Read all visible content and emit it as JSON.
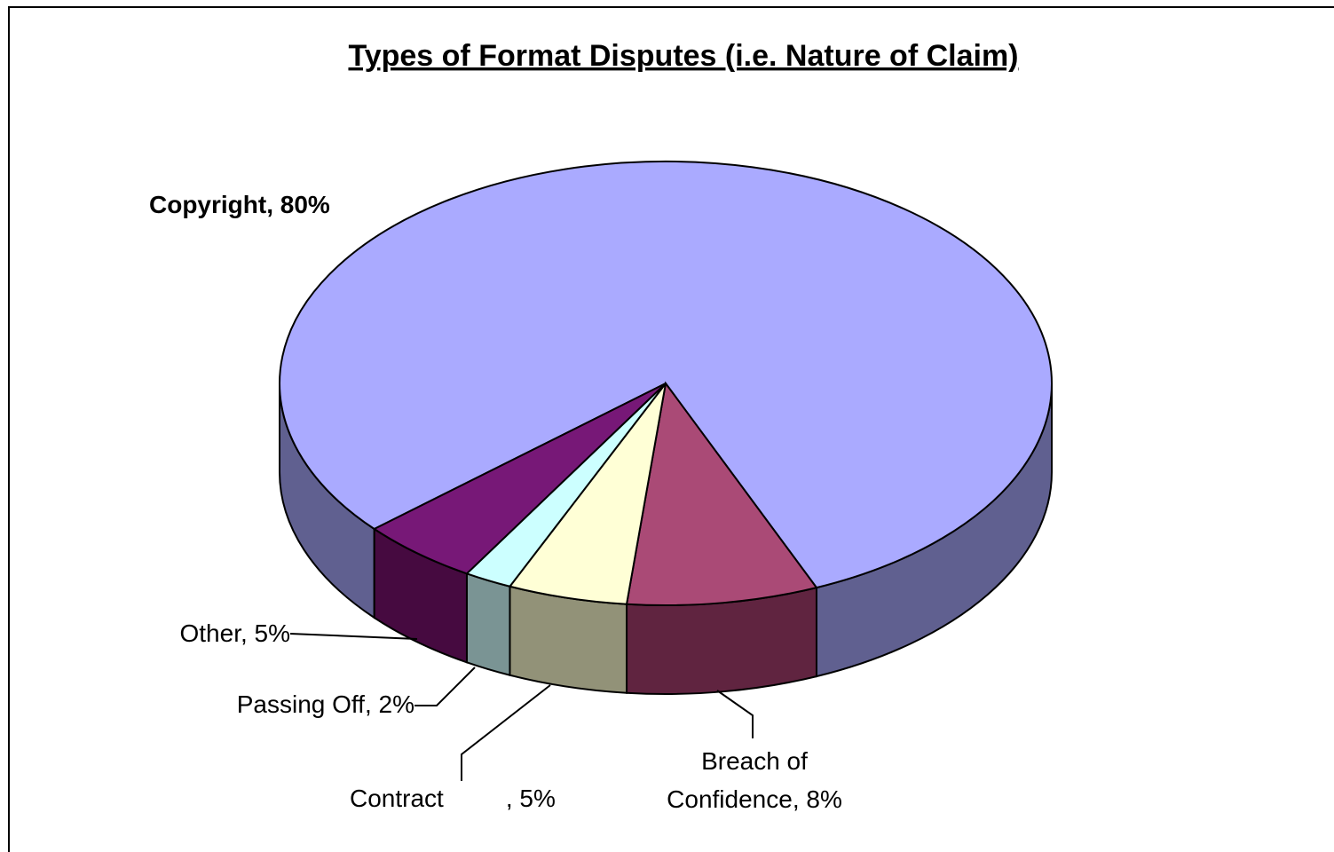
{
  "chart_data": {
    "type": "pie",
    "title": "Types of Format Disputes (i.e. Nature of Claim)",
    "categories": [
      "Copyright",
      "Breach of Confidence",
      "Contract",
      "Passing Off",
      "Other"
    ],
    "values": [
      80,
      8,
      5,
      2,
      5
    ],
    "value_labels": [
      ", 80%",
      ", 8%",
      ", 5%",
      ", 2%",
      ", 5%"
    ],
    "colors": [
      "#aaaaff",
      "#aa4a76",
      "#ffffd6",
      "#ccffff",
      "#771877"
    ],
    "side_colors": [
      "#606090",
      "#602440",
      "#929278",
      "#7a9494",
      "#460a40"
    ]
  }
}
